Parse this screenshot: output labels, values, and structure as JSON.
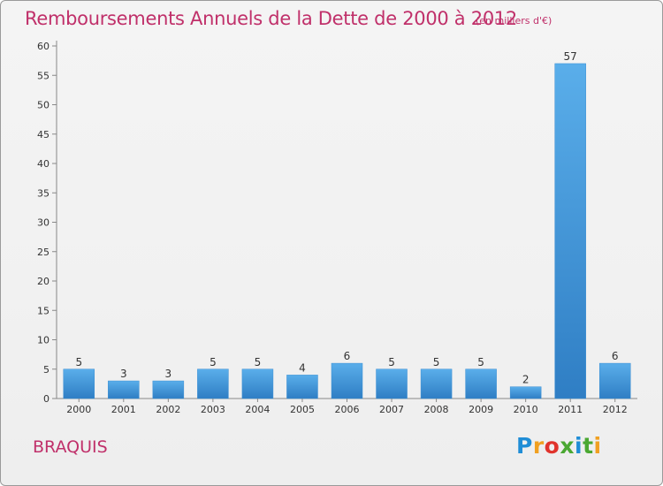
{
  "chart_data": {
    "type": "bar",
    "title": "Remboursements Annuels de la Dette de 2000 à 2012",
    "unit_note": "(en milliers d'€)",
    "categories": [
      "2000",
      "2001",
      "2002",
      "2003",
      "2004",
      "2005",
      "2006",
      "2007",
      "2008",
      "2009",
      "2010",
      "2011",
      "2012"
    ],
    "values": [
      5,
      3,
      3,
      5,
      5,
      4,
      6,
      5,
      5,
      5,
      2,
      57,
      6
    ],
    "ylim": [
      0,
      60
    ],
    "yticks": [
      0,
      5,
      10,
      15,
      20,
      25,
      30,
      35,
      40,
      45,
      50,
      55,
      60
    ],
    "grid": false,
    "bar_color": "#4d9fe0",
    "title_color": "#c0306a"
  },
  "footer": {
    "place_name": "BRAQUIS",
    "logo_text": "Proxiti",
    "logo_colors": [
      "#1f8dd6",
      "#f0a021",
      "#e0332c",
      "#4aa832",
      "#1f8dd6",
      "#4aa832",
      "#f0a021"
    ]
  }
}
